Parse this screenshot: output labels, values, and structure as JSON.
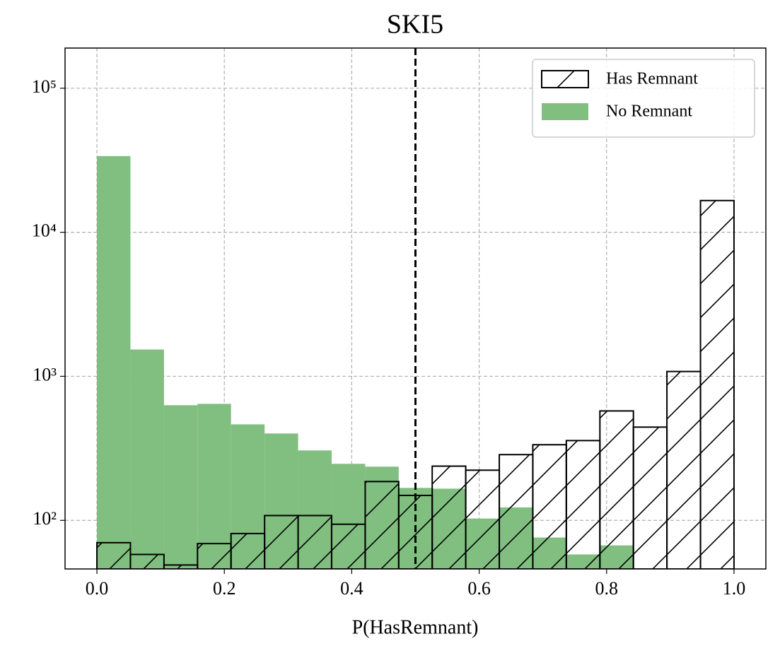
{
  "chart_data": {
    "type": "histogram",
    "title": "SKI5",
    "x_label": "P(HasRemnant)",
    "bins": [
      0,
      0.0526,
      0.1053,
      0.1579,
      0.2105,
      0.2632,
      0.3158,
      0.3684,
      0.4211,
      0.4737,
      0.5263,
      0.5789,
      0.6316,
      0.6842,
      0.7368,
      0.7895,
      0.8421,
      0.8947,
      0.9474,
      1
    ],
    "series": [
      {
        "name": "No Remnant",
        "color": "#80bf80",
        "style": "filled",
        "values": [
          33800,
          1535,
          630,
          644,
          464,
          401,
          306,
          247,
          236,
          168,
          166,
          103,
          123,
          76,
          58,
          67,
          0,
          0,
          0
        ]
      },
      {
        "name": "Has Remnant",
        "color": "#000000",
        "style": "hatched",
        "values": [
          70,
          58,
          49,
          69,
          81,
          108,
          108,
          94,
          186,
          149,
          238,
          223,
          286,
          335,
          358,
          575,
          444,
          1080,
          16600
        ]
      }
    ],
    "vline": 0.5,
    "xlim": [
      -0.05,
      1.05
    ],
    "xticks": [
      {
        "value": 0,
        "label": "0.0"
      },
      0.2,
      0.4,
      0.6,
      0.8,
      {
        "value": 1,
        "label": "1.0"
      }
    ],
    "ylim": [
      46,
      190000
    ],
    "log_y": true,
    "yticks": [
      {
        "value": 100,
        "label": "10²"
      },
      {
        "value": 1000,
        "label": "10³"
      },
      {
        "value": 10000,
        "label": "10⁴"
      },
      {
        "value": 100000,
        "label": "10⁵"
      }
    ],
    "grid": true,
    "legend": "upper right"
  }
}
